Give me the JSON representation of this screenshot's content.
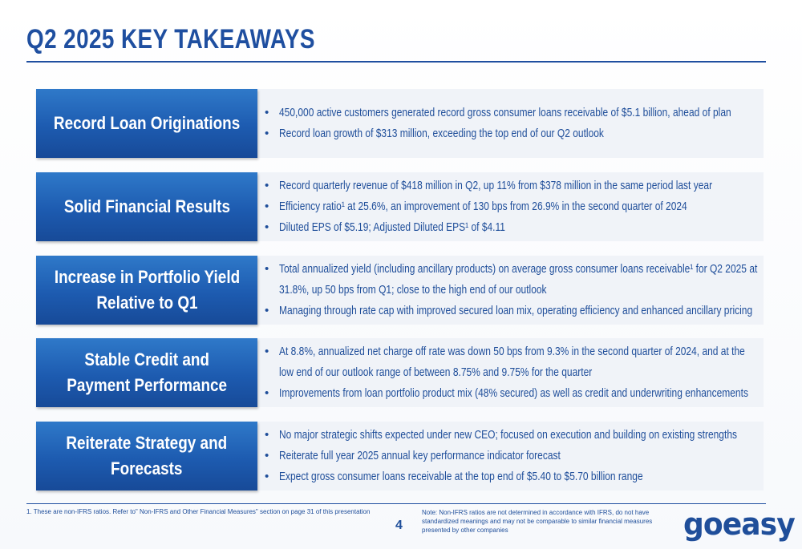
{
  "title": "Q2 2025 KEY TAKEAWAYS",
  "rows": [
    {
      "label": "Record Loan Originations",
      "bullets": [
        "450,000 active customers generated record gross consumer loans receivable of $5.1 billion, ahead of plan",
        "Record loan growth of $313 million, exceeding the top end of our Q2 outlook"
      ]
    },
    {
      "label": "Solid Financial Results",
      "bullets": [
        "Record quarterly revenue of $418 million in Q2, up 11% from $378 million in the same period last year",
        "Efficiency ratio¹ at 25.6%, an improvement of 130 bps from 26.9% in the second quarter of 2024",
        "Diluted EPS of $5.19; Adjusted Diluted EPS¹ of $4.11"
      ]
    },
    {
      "label": "Increase in Portfolio Yield\nRelative to Q1",
      "bullets": [
        "Total annualized yield (including ancillary products) on average gross consumer loans receivable¹ for Q2 2025 at 31.8%, up 50 bps from Q1; close to the high end of our outlook",
        "Managing through rate cap with improved secured loan mix, operating efficiency and enhanced ancillary pricing"
      ]
    },
    {
      "label": "Stable Credit and\nPayment Performance",
      "bullets": [
        "At 8.8%, annualized net charge off rate was down 50 bps from 9.3% in the second quarter of 2024, and at the low end of our outlook range of between 8.75% and 9.75% for the quarter",
        "Improvements from loan portfolio product mix (48% secured) as well as credit and underwriting enhancements"
      ]
    },
    {
      "label": "Reiterate Strategy and\nForecasts",
      "bullets": [
        "No major strategic shifts expected under new CEO; focused on execution and building on existing strengths",
        "Reiterate full year 2025 annual key performance indicator forecast",
        "Expect gross consumer loans receivable at the top end of $5.40 to $5.70 billion range"
      ]
    }
  ],
  "footnote": "1.   These are non-IFRS ratios. Refer to\" Non-IFRS and Other Financial Measures\" section on page 31 of this presentation",
  "page_number": "4",
  "note": "Note: Non-IFRS ratios are not determined in accordance with IFRS, do not have standardized meanings and may not be comparable to similar financial measures presented by other companies",
  "logo": "goeasy",
  "colors": {
    "brand_blue": "#1f4fa0",
    "label_gradient_top": "#2f79c9",
    "label_gradient_bottom": "#174a98",
    "row_bg": "#f0f3f8"
  }
}
